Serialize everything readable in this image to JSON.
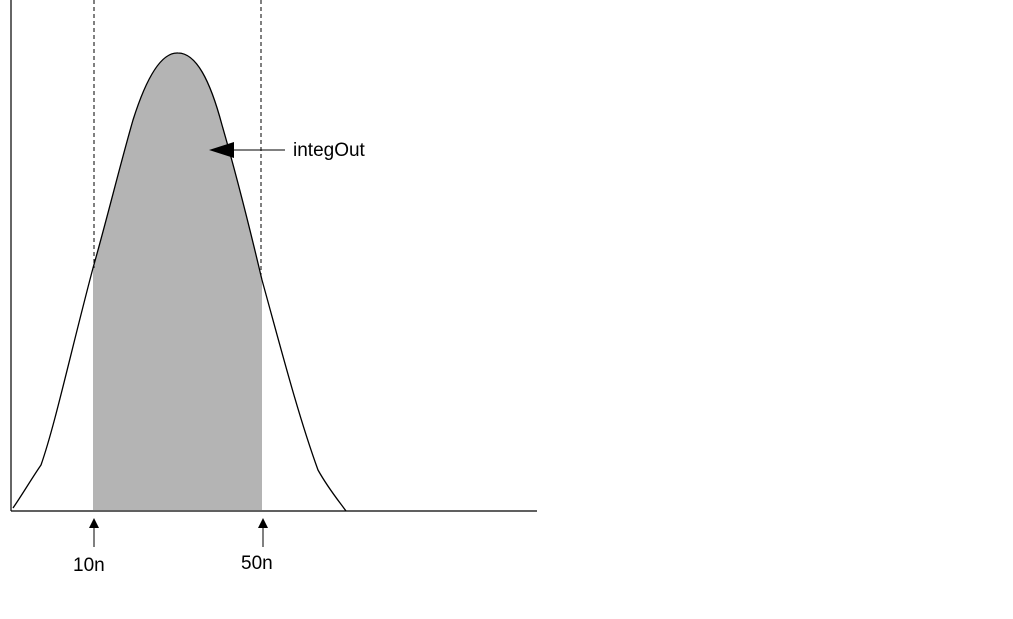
{
  "diagram": {
    "curve_label": "integOut",
    "markers": [
      {
        "label": "10n"
      },
      {
        "label": "50n"
      }
    ],
    "colors": {
      "background": "#ffffff",
      "shaded_area": "#b4b4b4",
      "lines": "#000000"
    }
  }
}
